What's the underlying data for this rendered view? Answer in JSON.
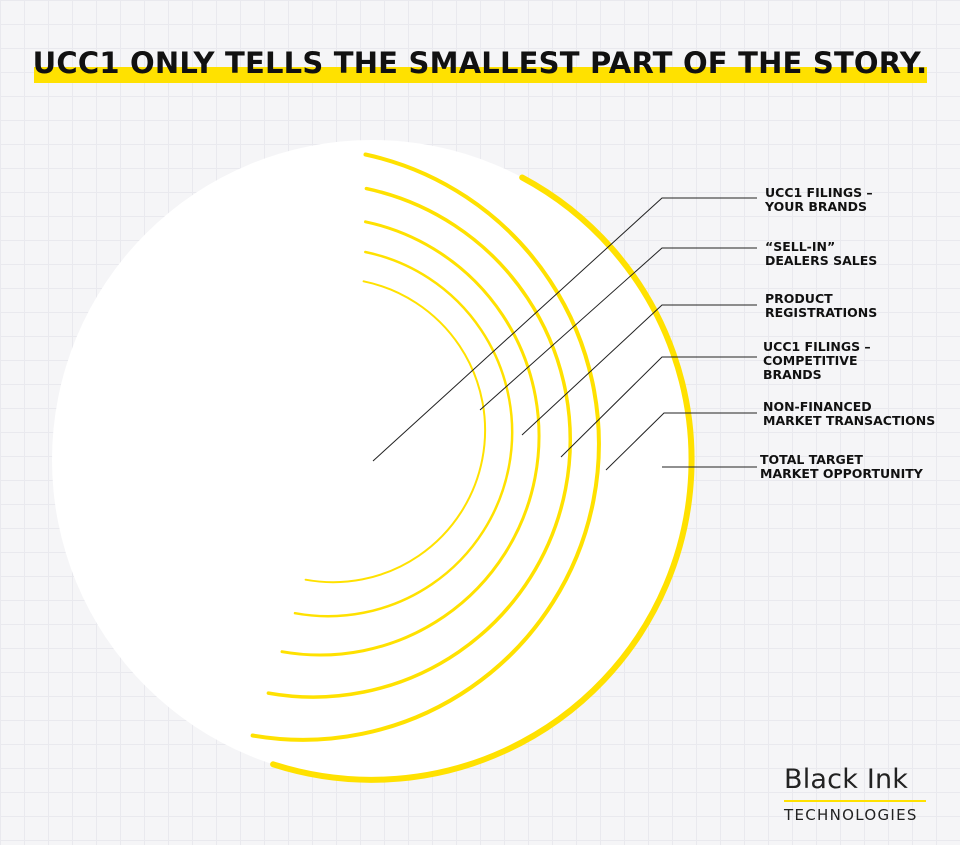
{
  "title": "UCC1 ONLY TELLS THE SMALLEST PART OF THE STORY.",
  "colors": {
    "accent": "#ffe100",
    "text": "#111111",
    "circle": "#ffffff",
    "line": "#222222"
  },
  "layers": [
    {
      "label": "UCC1 FILINGS –\nYOUR BRANDS"
    },
    {
      "label": "“SELL-IN”\nDEALERS SALES"
    },
    {
      "label": "PRODUCT\nREGISTRATIONS"
    },
    {
      "label": "UCC1 FILINGS –\nCOMPETITIVE\nBRANDS"
    },
    {
      "label": "NON-FINANCED\nMARKET  TRANSACTIONS"
    },
    {
      "label": "TOTAL TARGET\nMARKET OPPORTUNITY"
    }
  ],
  "brand": {
    "name": "Black Ink",
    "subtitle": "TECHNOLOGIES"
  }
}
